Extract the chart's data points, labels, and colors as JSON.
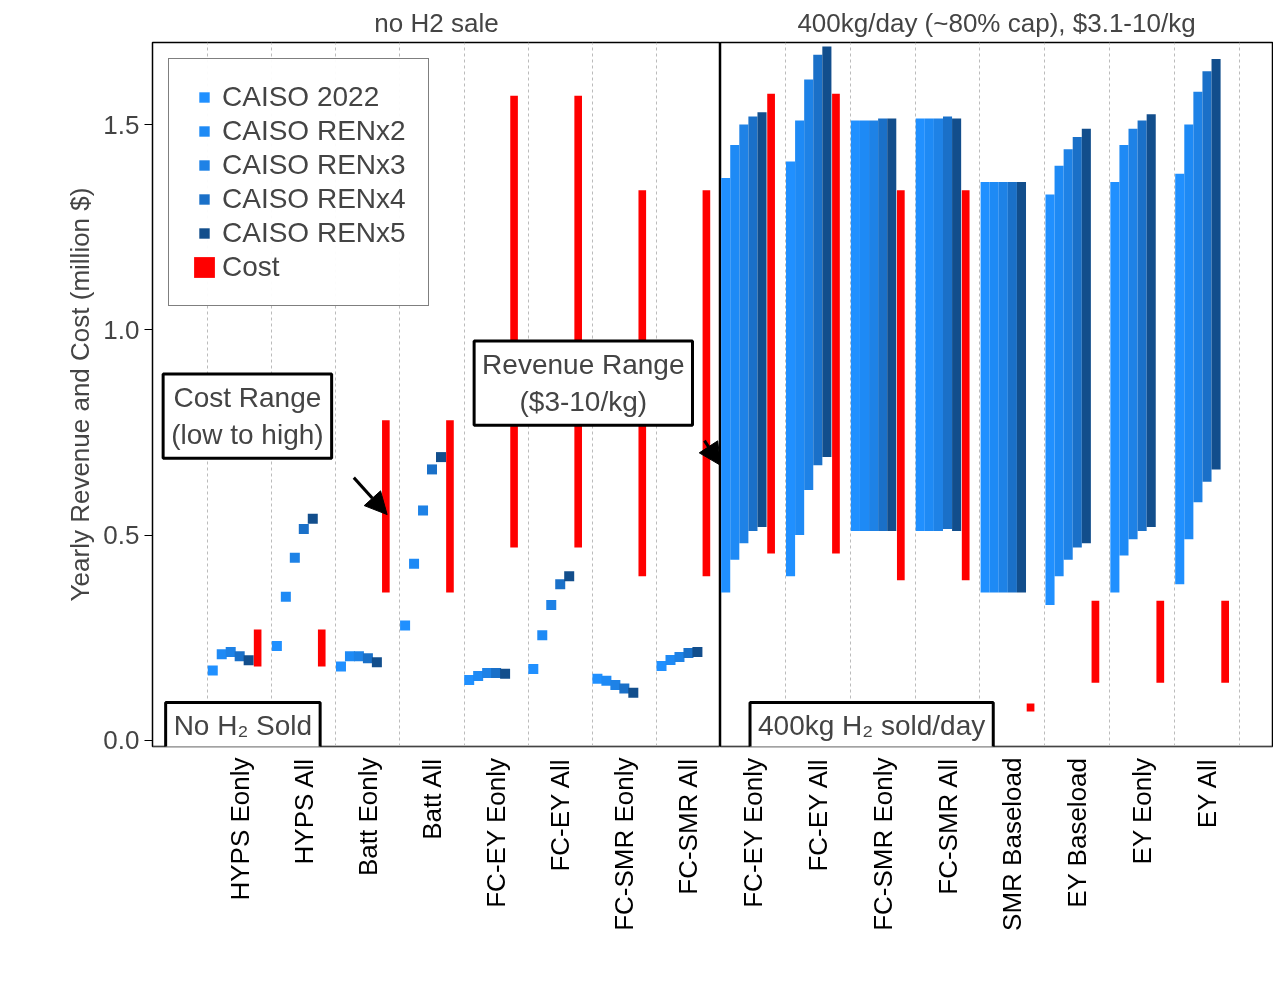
{
  "chart_data": [
    {
      "type": "bar",
      "title": "no H2 sale",
      "ylabel": "Yearly Revenue and Cost (million $)",
      "categories": [
        "HYPS Eonly",
        "HYPS All",
        "Batt Eonly",
        "Batt All",
        "FC-EY Eonly",
        "FC-EY All",
        "FC-SMR Eonly",
        "FC-SMR All"
      ],
      "ylim": [
        -0.015,
        1.7
      ],
      "yticks": [
        {
          "value": 0,
          "label": "0.0"
        },
        0.5,
        {
          "value": 1,
          "label": "1.0"
        },
        1.5
      ],
      "grid": "x",
      "legend": "top left",
      "marker": "square",
      "series": [
        {
          "name": "CAISO 2022",
          "type": "scatter",
          "color": "#2090ff",
          "values": [
            0.17,
            0.23,
            0.18,
            0.28,
            0.147,
            0.174,
            0.15,
            0.181
          ]
        },
        {
          "name": "CAISO RENx2",
          "type": "scatter",
          "color": "#1e8af5",
          "values": [
            0.21,
            0.35,
            0.205,
            0.43,
            0.157,
            0.256,
            0.145,
            0.196
          ]
        },
        {
          "name": "CAISO RENx3",
          "type": "scatter",
          "color": "#1e82e6",
          "values": [
            0.215,
            0.445,
            0.205,
            0.56,
            0.164,
            0.33,
            0.135,
            0.203
          ]
        },
        {
          "name": "CAISO RENx4",
          "type": "scatter",
          "color": "#1a70c8",
          "values": [
            0.205,
            0.515,
            0.2,
            0.66,
            0.164,
            0.38,
            0.126,
            0.213
          ]
        },
        {
          "name": "CAISO RENx5",
          "type": "scatter",
          "color": "#124e8c",
          "values": [
            0.195,
            0.54,
            0.19,
            0.69,
            0.162,
            0.4,
            0.116,
            0.215
          ]
        },
        {
          "name": "Cost",
          "type": "bar",
          "color": "#ff0000",
          "base": [
            0.18,
            0.18,
            0.36,
            0.36,
            0.47,
            0.47,
            0.4,
            0.4
          ],
          "values": [
            0.09,
            0.09,
            0.42,
            0.42,
            1.1,
            1.1,
            0.94,
            0.94
          ]
        }
      ],
      "annotations": [
        "No H₂ Sold",
        "Cost Range\n(low to high)",
        "Revenue Range\n($3-10/kg)"
      ]
    },
    {
      "type": "bar",
      "title": "400kg/day (~80% cap), $3.1-10/kg",
      "categories": [
        "FC-EY Eonly",
        "FC-EY All",
        "FC-SMR Eonly",
        "FC-SMR All",
        "SMR Baseload",
        "EY Baseload",
        "EY Eonly",
        "EY All"
      ],
      "ylim": [
        -0.015,
        1.7
      ],
      "tick_labels": "x",
      "grid": "x",
      "series": [
        {
          "color": "#2090ff",
          "base": [
            0.36,
            0.4,
            0.51,
            0.51,
            0.36,
            0.33,
            0.36,
            0.38
          ],
          "values": [
            1.01,
            1.01,
            1.0,
            1.005,
            1.0,
            1.0,
            1.0,
            1.0
          ]
        },
        {
          "color": "#1e8af5",
          "base": [
            0.44,
            0.5,
            0.51,
            0.51,
            0.36,
            0.4,
            0.45,
            0.49
          ],
          "values": [
            1.01,
            1.01,
            1.0,
            1.005,
            1.0,
            1.0,
            1.0,
            1.01
          ]
        },
        {
          "color": "#1e82e6",
          "base": [
            0.48,
            0.61,
            0.51,
            0.51,
            0.36,
            0.44,
            0.49,
            0.58
          ],
          "values": [
            1.02,
            1.0,
            1.0,
            1.005,
            1.0,
            1.0,
            1.0,
            1.0
          ]
        },
        {
          "color": "#1a70c8",
          "base": [
            0.51,
            0.67,
            0.51,
            0.515,
            0.36,
            0.47,
            0.51,
            0.63
          ],
          "values": [
            1.01,
            1.0,
            1.005,
            1.005,
            1.0,
            1.0,
            1.0,
            1.0
          ]
        },
        {
          "color": "#124e8c",
          "base": [
            0.52,
            0.69,
            0.51,
            0.51,
            0.36,
            0.48,
            0.52,
            0.66
          ],
          "values": [
            1.01,
            1.0,
            1.005,
            1.005,
            1.0,
            1.01,
            1.005,
            1.0
          ]
        },
        {
          "color": "#ff0000",
          "base": [
            0.455,
            0.455,
            0.39,
            0.39,
            0.07,
            0.14,
            0.14,
            0.14
          ],
          "values": [
            1.12,
            1.12,
            0.95,
            0.95,
            0.02,
            0.2,
            0.2,
            0.2
          ]
        }
      ],
      "annotations": [
        "400kg H₂ sold/day"
      ]
    }
  ]
}
